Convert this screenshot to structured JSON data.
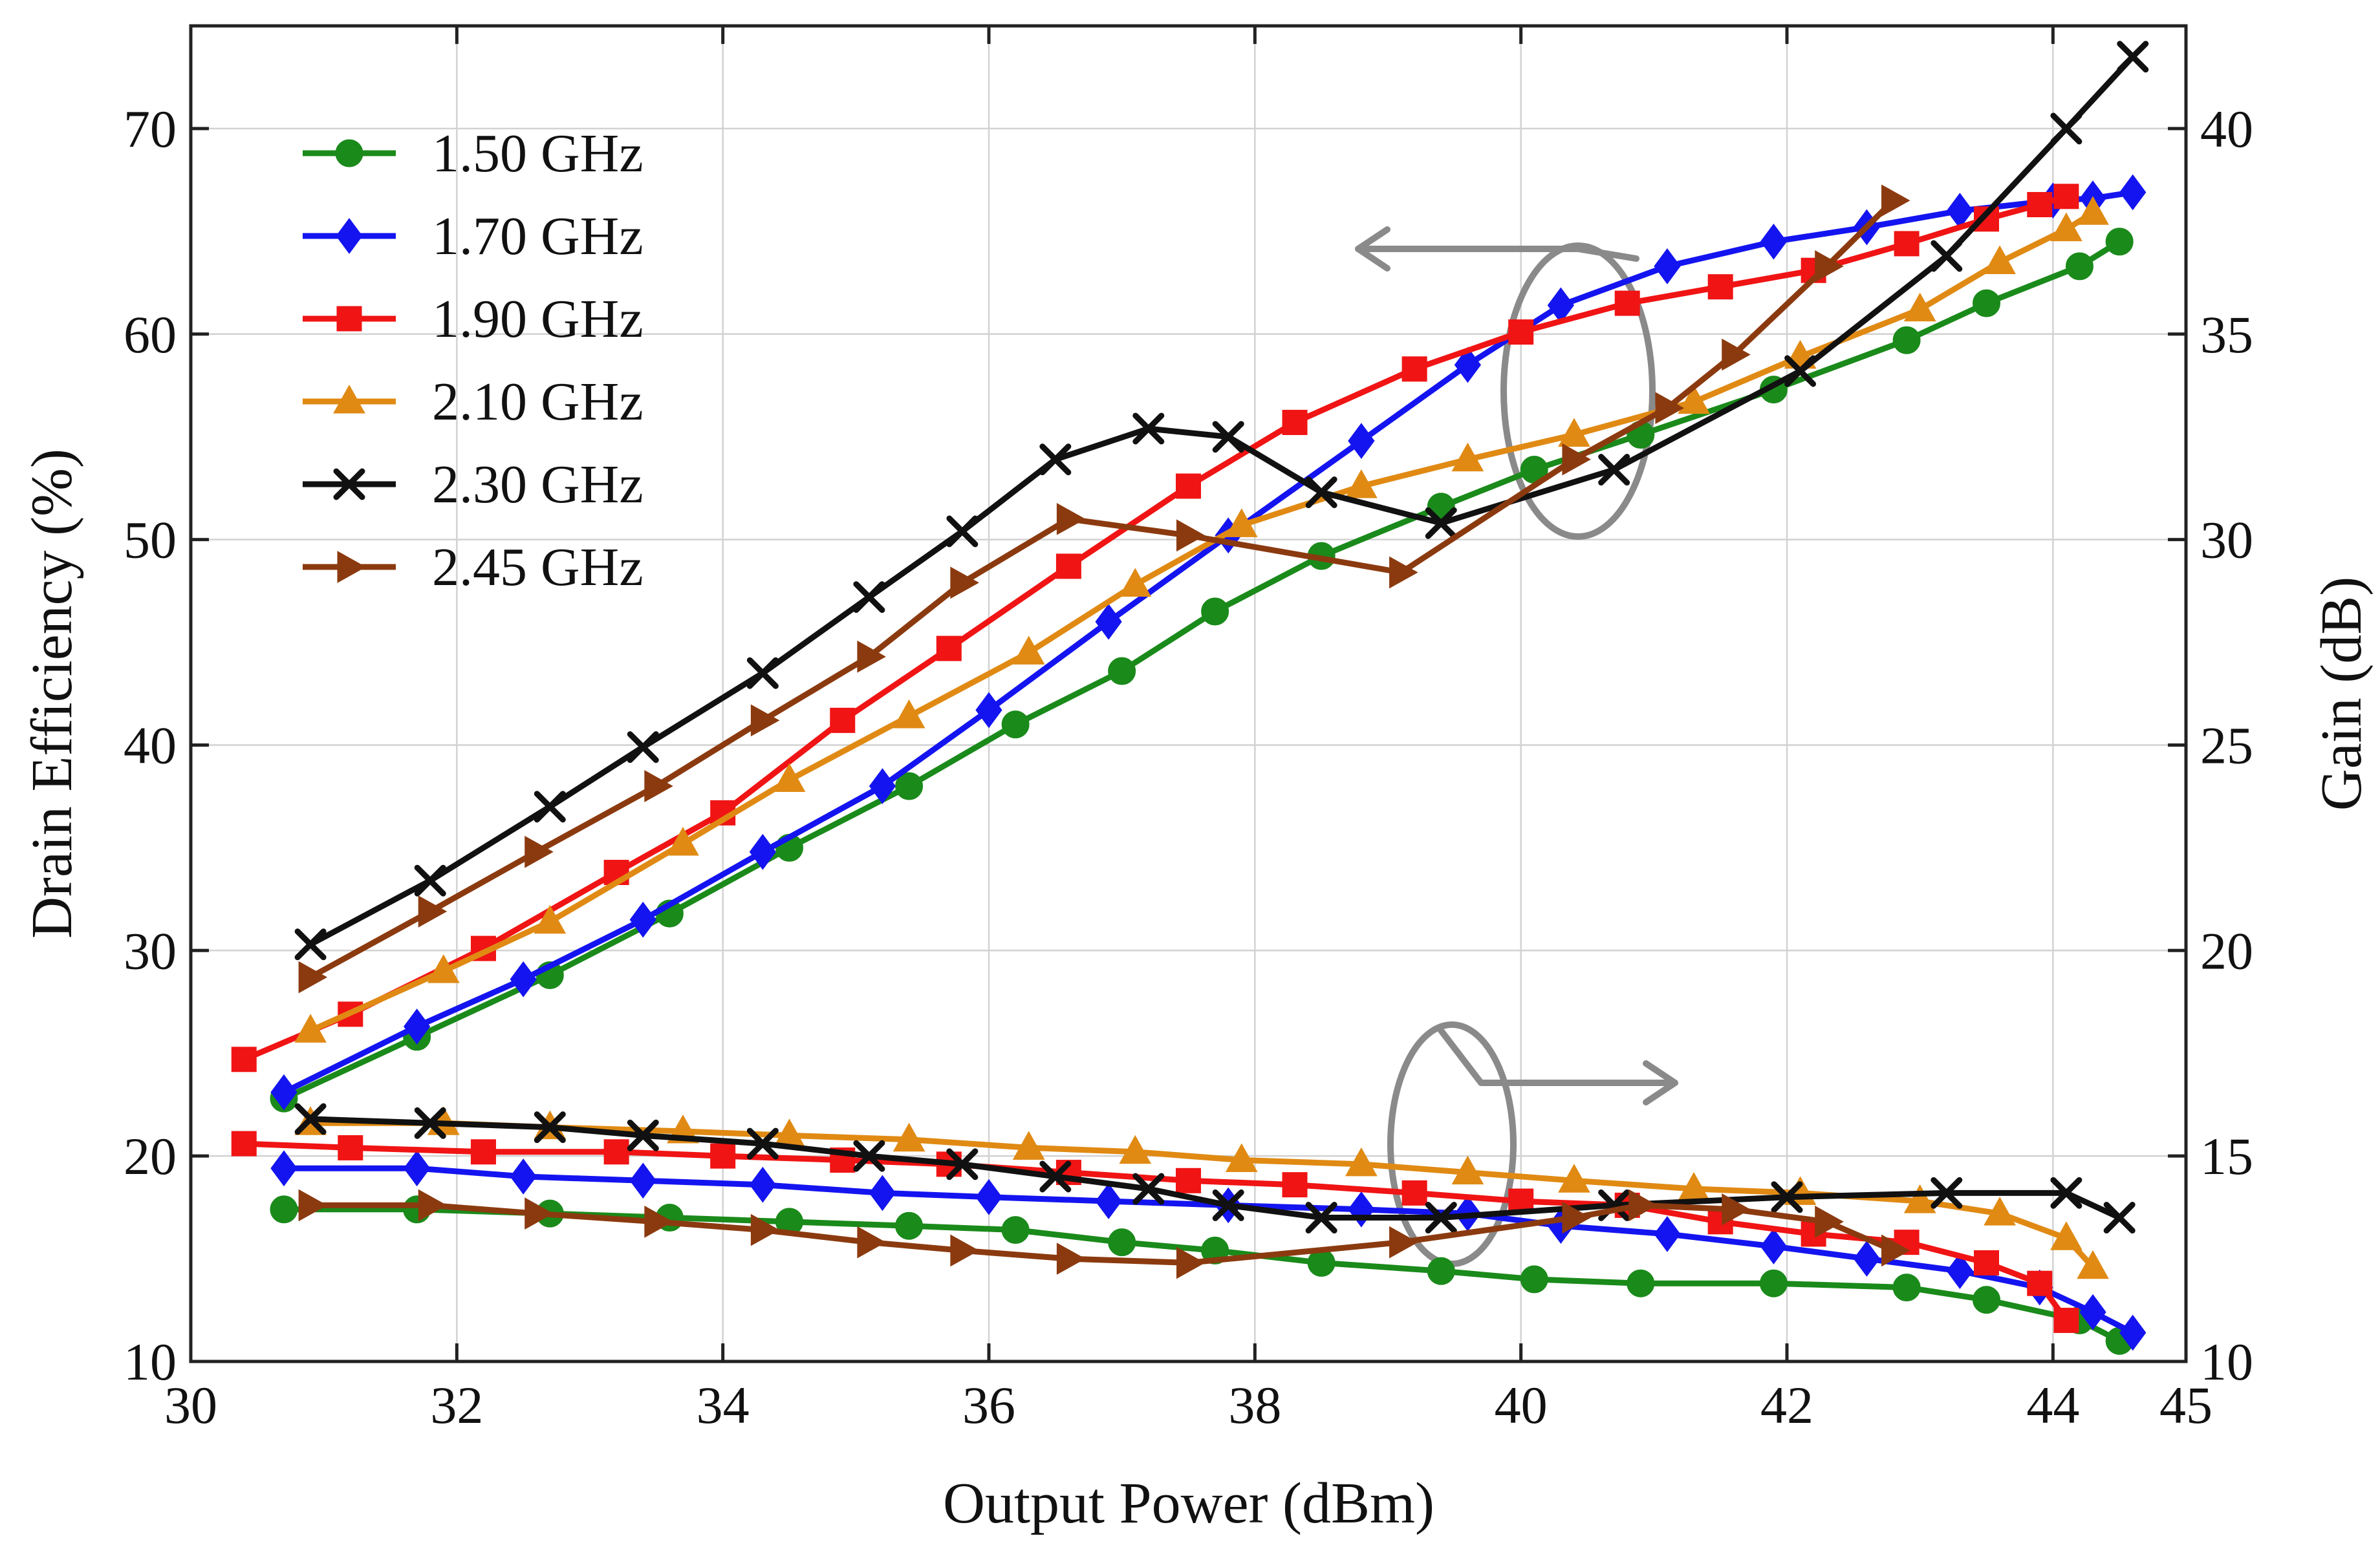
{
  "chart_data": {
    "type": "line",
    "xlabel": "Output Power (dBm)",
    "ylabel": "Drain Efficiency (%)",
    "y2label": "Gain (dB)",
    "xlim": [
      30,
      45
    ],
    "ylim": [
      10,
      75
    ],
    "y2lim": [
      10,
      42.5
    ],
    "x_ticks": [
      "30",
      "32",
      "34",
      "36",
      "38",
      "40",
      "42",
      "44",
      "45"
    ],
    "y_ticks": [
      "10",
      "20",
      "30",
      "40",
      "50",
      "60",
      "70"
    ],
    "y2_ticks": [
      "10",
      "15",
      "20",
      "25",
      "30",
      "35",
      "40"
    ],
    "grid": true,
    "legend_position": "top-left",
    "annotations": [
      {
        "target": "left axis",
        "direction": "arrow pointing left from efficiency curves"
      },
      {
        "target": "right axis",
        "direction": "arrow pointing right from gain curves"
      }
    ],
    "series": [
      {
        "name": "1.50 GHz",
        "color": "#1a8a1a",
        "marker": "circle",
        "efficiency": {
          "x": [
            30.7,
            31.7,
            32.7,
            33.6,
            34.5,
            35.4,
            36.2,
            37.0,
            37.7,
            38.5,
            39.4,
            40.1,
            40.9,
            41.9,
            42.9,
            43.5,
            44.2,
            44.5
          ],
          "y": [
            22.8,
            25.8,
            28.8,
            31.8,
            35.0,
            38.0,
            41.0,
            43.6,
            46.5,
            49.2,
            51.6,
            53.4,
            55.1,
            57.3,
            59.7,
            61.5,
            63.3,
            64.5
          ]
        },
        "gain": {
          "x": [
            30.7,
            31.7,
            32.7,
            33.6,
            34.5,
            35.4,
            36.2,
            37.0,
            37.7,
            38.5,
            39.4,
            40.1,
            40.9,
            41.9,
            42.9,
            43.5,
            44.2,
            44.5
          ],
          "y": [
            13.7,
            13.7,
            13.6,
            13.5,
            13.4,
            13.3,
            13.2,
            12.9,
            12.7,
            12.4,
            12.2,
            12.0,
            11.9,
            11.9,
            11.8,
            11.5,
            11.0,
            10.5
          ]
        }
      },
      {
        "name": "1.70 GHz",
        "color": "#1414f0",
        "marker": "diamond",
        "efficiency": {
          "x": [
            30.7,
            31.7,
            32.5,
            33.4,
            34.3,
            35.2,
            36.0,
            36.9,
            37.8,
            38.8,
            39.6,
            40.3,
            41.1,
            41.9,
            42.6,
            43.3,
            44.0,
            44.3,
            44.6
          ],
          "y": [
            23.1,
            26.3,
            28.6,
            31.5,
            34.8,
            38.0,
            41.7,
            46.0,
            50.2,
            54.8,
            58.5,
            61.4,
            63.3,
            64.5,
            65.2,
            66.0,
            66.5,
            66.6,
            66.9
          ]
        },
        "gain": {
          "x": [
            30.7,
            31.7,
            32.5,
            33.4,
            34.3,
            35.2,
            36.0,
            36.9,
            37.8,
            38.8,
            39.6,
            40.3,
            41.1,
            41.9,
            42.6,
            43.3,
            43.9,
            44.3,
            44.6
          ],
          "y": [
            14.7,
            14.7,
            14.5,
            14.4,
            14.3,
            14.1,
            14.0,
            13.9,
            13.8,
            13.7,
            13.6,
            13.3,
            13.1,
            12.8,
            12.5,
            12.2,
            11.8,
            11.2,
            10.7
          ]
        }
      },
      {
        "name": "1.90 GHz",
        "color": "#f01414",
        "marker": "square",
        "efficiency": {
          "x": [
            30.4,
            31.2,
            32.2,
            33.2,
            34.0,
            34.9,
            35.7,
            36.6,
            37.5,
            38.3,
            39.2,
            40.0,
            40.8,
            41.5,
            42.2,
            42.9,
            43.5,
            43.9,
            44.1
          ],
          "y": [
            24.7,
            26.9,
            30.1,
            33.8,
            36.7,
            41.2,
            44.7,
            48.7,
            52.6,
            55.7,
            58.3,
            60.1,
            61.5,
            62.3,
            63.1,
            64.4,
            65.6,
            66.3,
            66.7
          ]
        },
        "gain": {
          "x": [
            30.4,
            31.2,
            32.2,
            33.2,
            34.0,
            34.9,
            35.7,
            36.6,
            37.5,
            38.3,
            39.2,
            40.0,
            40.8,
            41.5,
            42.2,
            42.9,
            43.5,
            43.9,
            44.1
          ],
          "y": [
            15.3,
            15.2,
            15.1,
            15.1,
            15.0,
            14.9,
            14.8,
            14.6,
            14.4,
            14.3,
            14.1,
            13.9,
            13.8,
            13.4,
            13.1,
            12.9,
            12.4,
            11.9,
            11.0
          ]
        }
      },
      {
        "name": "2.10 GHz",
        "color": "#e08a14",
        "marker": "triangle-up",
        "efficiency": {
          "x": [
            30.9,
            31.9,
            32.7,
            33.7,
            34.5,
            35.4,
            36.3,
            37.1,
            37.9,
            38.8,
            39.6,
            40.4,
            41.3,
            42.1,
            43.0,
            43.6,
            44.1,
            44.3
          ],
          "y": [
            26.1,
            29.0,
            31.4,
            35.2,
            38.3,
            41.4,
            44.5,
            47.8,
            50.7,
            52.6,
            53.9,
            55.1,
            56.7,
            58.9,
            61.2,
            63.5,
            65.1,
            65.9
          ]
        },
        "gain": {
          "x": [
            30.9,
            31.9,
            32.7,
            33.7,
            34.5,
            35.4,
            36.3,
            37.1,
            37.9,
            38.8,
            39.6,
            40.4,
            41.3,
            42.1,
            43.0,
            43.6,
            44.1,
            44.3
          ],
          "y": [
            15.8,
            15.8,
            15.7,
            15.6,
            15.5,
            15.4,
            15.2,
            15.1,
            14.9,
            14.8,
            14.6,
            14.4,
            14.2,
            14.1,
            13.9,
            13.6,
            13.0,
            12.3
          ]
        }
      },
      {
        "name": "2.30 GHz",
        "color": "#111111",
        "marker": "x",
        "efficiency": {
          "x": [
            30.9,
            31.8,
            32.7,
            33.4,
            34.3,
            35.1,
            35.8,
            36.5,
            37.2,
            37.8,
            38.5,
            39.4,
            40.7,
            42.1,
            43.2,
            44.1,
            44.6
          ],
          "y": [
            30.3,
            33.4,
            37.0,
            39.9,
            43.5,
            47.2,
            50.4,
            53.9,
            55.4,
            55.0,
            52.3,
            50.8,
            53.4,
            58.2,
            63.8,
            70.0,
            73.5
          ]
        },
        "gain": {
          "x": [
            30.9,
            31.8,
            32.7,
            33.4,
            34.3,
            35.1,
            35.8,
            36.5,
            37.2,
            37.8,
            38.5,
            39.4,
            40.7,
            42.0,
            43.2,
            44.1,
            44.5
          ],
          "y": [
            15.9,
            15.8,
            15.7,
            15.5,
            15.3,
            15.0,
            14.8,
            14.5,
            14.2,
            13.8,
            13.5,
            13.5,
            13.8,
            14.0,
            14.1,
            14.1,
            13.5
          ]
        }
      },
      {
        "name": "2.45 GHz",
        "color": "#8b3a0f",
        "marker": "triangle-right",
        "efficiency": {
          "x": [
            30.9,
            31.8,
            32.6,
            33.5,
            34.3,
            35.1,
            35.8,
            36.6,
            37.5,
            39.1,
            40.4,
            41.1,
            41.6,
            42.3,
            42.8
          ],
          "y": [
            28.7,
            31.9,
            34.8,
            38.0,
            41.2,
            44.3,
            47.9,
            51.0,
            50.2,
            48.4,
            53.9,
            56.4,
            59.0,
            63.3,
            66.5
          ]
        },
        "gain": {
          "x": [
            30.9,
            31.8,
            32.6,
            33.5,
            34.3,
            35.1,
            35.8,
            36.6,
            37.5,
            39.1,
            40.4,
            40.9,
            41.6,
            42.3,
            42.8
          ],
          "y": [
            13.8,
            13.8,
            13.6,
            13.4,
            13.2,
            12.9,
            12.7,
            12.5,
            12.4,
            12.9,
            13.5,
            13.8,
            13.7,
            13.4,
            12.7
          ]
        }
      }
    ]
  }
}
